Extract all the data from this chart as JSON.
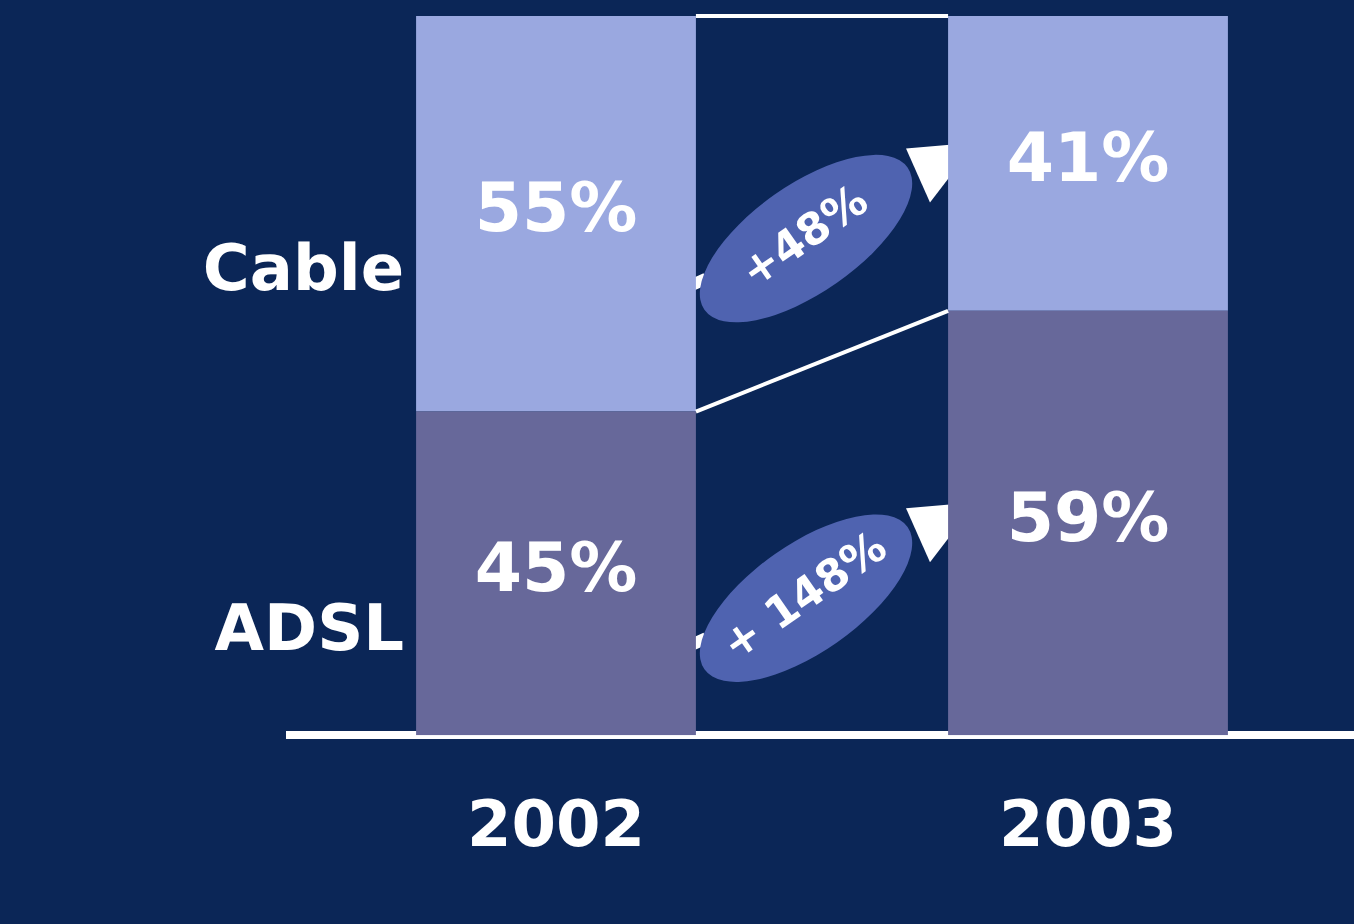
{
  "chart_data": {
    "type": "bar",
    "stacked": true,
    "categories": [
      "2002",
      "2003"
    ],
    "series": [
      {
        "name": "ADSL",
        "color": "#67689a",
        "values": [
          45,
          59
        ],
        "value_labels": [
          "45%",
          "59%"
        ]
      },
      {
        "name": "Cable",
        "color": "#9aa8e0",
        "values": [
          55,
          41
        ],
        "value_labels": [
          "55%",
          "41%"
        ]
      }
    ],
    "ylim": [
      0,
      100
    ],
    "tick_labels": "x",
    "grid": false,
    "legend": false,
    "annotations": [
      "+ 148%",
      "+48%"
    ]
  }
}
